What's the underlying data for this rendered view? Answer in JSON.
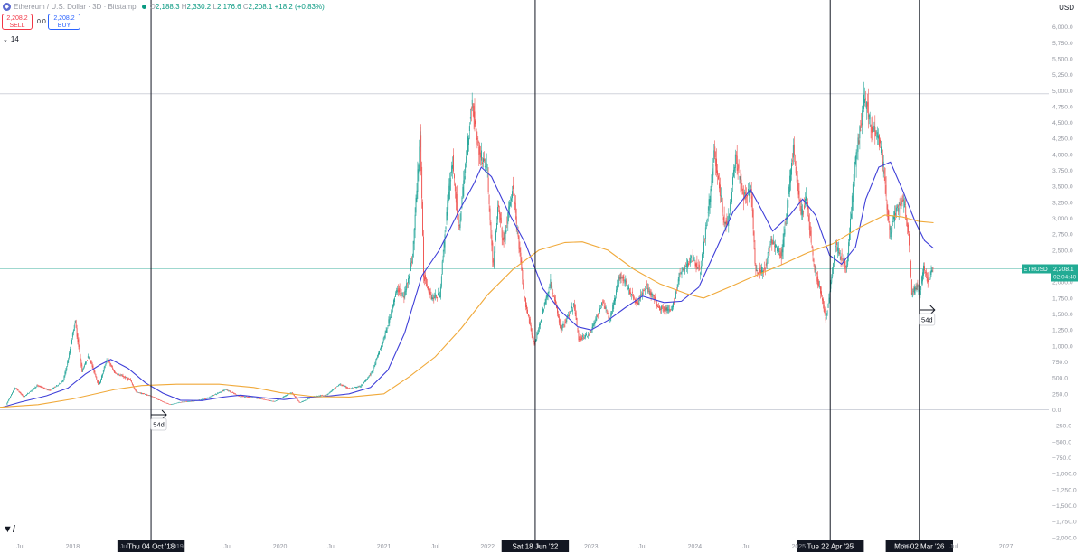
{
  "header": {
    "symbol_title": "Ethereum / U.S. Dollar · 3D · Bitstamp",
    "open_label": "O",
    "open": "2,188.3",
    "high_label": "H",
    "high": "2,330.2",
    "low_label": "L",
    "low": "2,176.6",
    "close_label": "C",
    "close": "2,208.1",
    "change": "+18.2 (+0.83%)",
    "currency": "USD"
  },
  "trade": {
    "sell_price": "2,208.2",
    "sell_label": "SELL",
    "spread": "0.0",
    "buy_price": "2,208.2",
    "buy_label": "BUY"
  },
  "indicator": {
    "label": "14"
  },
  "colors": {
    "up": "#26a69a",
    "down": "#ef5350",
    "ma_fast": "#3f3fd8",
    "ma_slow": "#f0a93a",
    "price_tag": "#22ab94"
  },
  "price_tag": {
    "symbol": "ETHUSD",
    "price": "2,208.1",
    "countdown": "02:04:40"
  },
  "vertical_markers": [
    {
      "date": "2018-10-04",
      "label": "Thu 04 Oct '18"
    },
    {
      "date": "2022-06-18",
      "label": "Sat 18 Jun '22"
    },
    {
      "date": "2025-04-22",
      "label": "Tue 22 Apr '25"
    },
    {
      "date": "2026-03-02",
      "label": "Mon 02 Mar '26"
    }
  ],
  "annotations": [
    {
      "text": "54d",
      "date": "2018-10-04"
    },
    {
      "text": "54d",
      "date": "2026-03-02"
    }
  ],
  "chart_data": {
    "type": "line",
    "title": "Ethereum / U.S. Dollar · 3D · Bitstamp",
    "y_range": [
      -2000,
      6500
    ],
    "x_range": [
      "2017-04-20",
      "2027-06-01"
    ],
    "grid": false,
    "y_ticks": [
      "6,000.0",
      "5,750.0",
      "5,500.0",
      "5,250.0",
      "5,000.0",
      "4,750.0",
      "4,500.0",
      "4,250.0",
      "4,000.0",
      "3,750.0",
      "3,500.0",
      "3,250.0",
      "3,000.0",
      "2,750.0",
      "2,500.0",
      "2,250.0",
      "2,000.0",
      "1,750.0",
      "1,500.0",
      "1,250.0",
      "1,000.0",
      "750.0",
      "500.0",
      "250.0",
      "0.0",
      "−250.0",
      "−500.0",
      "−750.0",
      "−1,000.0",
      "−1,250.0",
      "−1,500.0",
      "−1,750.0",
      "−2,000.0"
    ],
    "x_ticks": [
      {
        "label": "Jul",
        "date": "2017-07-01"
      },
      {
        "label": "2018",
        "date": "2018-01-01"
      },
      {
        "label": "Jul",
        "date": "2018-07-01"
      },
      {
        "label": "2019",
        "date": "2019-01-01"
      },
      {
        "label": "Jul",
        "date": "2019-07-01"
      },
      {
        "label": "2020",
        "date": "2020-01-01"
      },
      {
        "label": "Jul",
        "date": "2020-07-01"
      },
      {
        "label": "2021",
        "date": "2021-01-01"
      },
      {
        "label": "Jul",
        "date": "2021-07-01"
      },
      {
        "label": "2022",
        "date": "2022-01-01"
      },
      {
        "label": "Jul",
        "date": "2022-07-01"
      },
      {
        "label": "2023",
        "date": "2023-01-01"
      },
      {
        "label": "Jul",
        "date": "2023-07-01"
      },
      {
        "label": "2024",
        "date": "2024-01-01"
      },
      {
        "label": "Jul",
        "date": "2024-07-01"
      },
      {
        "label": "2025",
        "date": "2025-01-01"
      },
      {
        "label": "Jul",
        "date": "2025-07-01"
      },
      {
        "label": "2026",
        "date": "2026-01-01"
      },
      {
        "label": "Jul",
        "date": "2026-07-01"
      },
      {
        "label": "2027",
        "date": "2027-01-01"
      }
    ],
    "horizontal_lines": [
      4950,
      2208.1,
      0
    ],
    "price_series": {
      "name": "ETHUSD",
      "points": [
        [
          "2017-05-15",
          85
        ],
        [
          "2017-06-15",
          350
        ],
        [
          "2017-07-15",
          200
        ],
        [
          "2017-09-01",
          380
        ],
        [
          "2017-10-15",
          300
        ],
        [
          "2017-12-01",
          450
        ],
        [
          "2017-12-20",
          800
        ],
        [
          "2018-01-12",
          1400
        ],
        [
          "2018-02-06",
          600
        ],
        [
          "2018-03-01",
          850
        ],
        [
          "2018-04-06",
          380
        ],
        [
          "2018-05-05",
          800
        ],
        [
          "2018-06-01",
          580
        ],
        [
          "2018-07-25",
          470
        ],
        [
          "2018-08-15",
          280
        ],
        [
          "2018-10-04",
          220
        ],
        [
          "2018-11-25",
          110
        ],
        [
          "2018-12-15",
          85
        ],
        [
          "2019-01-15",
          120
        ],
        [
          "2019-03-01",
          135
        ],
        [
          "2019-04-15",
          170
        ],
        [
          "2019-05-25",
          250
        ],
        [
          "2019-06-26",
          320
        ],
        [
          "2019-08-15",
          210
        ],
        [
          "2019-09-15",
          200
        ],
        [
          "2019-10-15",
          180
        ],
        [
          "2019-12-15",
          130
        ],
        [
          "2020-02-14",
          270
        ],
        [
          "2020-03-13",
          110
        ],
        [
          "2020-04-30",
          210
        ],
        [
          "2020-06-15",
          230
        ],
        [
          "2020-08-01",
          400
        ],
        [
          "2020-09-05",
          330
        ],
        [
          "2020-10-15",
          370
        ],
        [
          "2020-11-24",
          600
        ],
        [
          "2021-01-10",
          1200
        ],
        [
          "2021-02-20",
          1900
        ],
        [
          "2021-03-15",
          1750
        ],
        [
          "2021-04-15",
          2400
        ],
        [
          "2021-05-12",
          4350
        ],
        [
          "2021-05-24",
          2100
        ],
        [
          "2021-06-22",
          1750
        ],
        [
          "2021-07-20",
          1800
        ],
        [
          "2021-08-15",
          3200
        ],
        [
          "2021-09-03",
          3900
        ],
        [
          "2021-09-25",
          2800
        ],
        [
          "2021-11-10",
          4850
        ],
        [
          "2021-12-04",
          4050
        ],
        [
          "2022-01-02",
          3800
        ],
        [
          "2022-01-24",
          2200
        ],
        [
          "2022-02-10",
          3200
        ],
        [
          "2022-03-01",
          2600
        ],
        [
          "2022-04-03",
          3500
        ],
        [
          "2022-05-12",
          1800
        ],
        [
          "2022-06-18",
          1000
        ],
        [
          "2022-07-15",
          1500
        ],
        [
          "2022-08-14",
          2000
        ],
        [
          "2022-09-20",
          1250
        ],
        [
          "2022-11-05",
          1650
        ],
        [
          "2022-11-21",
          1100
        ],
        [
          "2022-12-31",
          1200
        ],
        [
          "2023-02-15",
          1700
        ],
        [
          "2023-03-10",
          1400
        ],
        [
          "2023-04-16",
          2130
        ],
        [
          "2023-06-15",
          1650
        ],
        [
          "2023-07-15",
          1950
        ],
        [
          "2023-09-01",
          1600
        ],
        [
          "2023-10-15",
          1550
        ],
        [
          "2023-11-10",
          2100
        ],
        [
          "2023-12-28",
          2400
        ],
        [
          "2024-01-23",
          2150
        ],
        [
          "2024-02-28",
          3400
        ],
        [
          "2024-03-12",
          4050
        ],
        [
          "2024-04-17",
          2900
        ],
        [
          "2024-05-01",
          2950
        ],
        [
          "2024-05-27",
          3950
        ],
        [
          "2024-06-24",
          3300
        ],
        [
          "2024-07-20",
          3500
        ],
        [
          "2024-08-05",
          2150
        ],
        [
          "2024-09-06",
          2200
        ],
        [
          "2024-09-29",
          2650
        ],
        [
          "2024-11-05",
          2400
        ],
        [
          "2024-12-16",
          4100
        ],
        [
          "2025-01-13",
          3050
        ],
        [
          "2025-01-31",
          3300
        ],
        [
          "2025-02-28",
          2200
        ],
        [
          "2025-03-20",
          1900
        ],
        [
          "2025-04-09",
          1400
        ],
        [
          "2025-04-22",
          1800
        ],
        [
          "2025-05-13",
          2600
        ],
        [
          "2025-06-22",
          2200
        ],
        [
          "2025-07-20",
          3800
        ],
        [
          "2025-08-24",
          4900
        ],
        [
          "2025-09-20",
          4400
        ],
        [
          "2025-10-10",
          4350
        ],
        [
          "2025-10-30",
          3800
        ],
        [
          "2025-11-20",
          2750
        ],
        [
          "2025-12-15",
          3150
        ],
        [
          "2026-01-10",
          3250
        ],
        [
          "2026-01-25",
          2750
        ],
        [
          "2026-02-06",
          1800
        ],
        [
          "2026-02-25",
          1950
        ],
        [
          "2026-03-05",
          1750
        ],
        [
          "2026-03-20",
          2250
        ],
        [
          "2026-04-05",
          2000
        ],
        [
          "2026-04-21",
          2208.1
        ]
      ]
    },
    "series": [
      {
        "name": "",
        "color": "#3f3fd8",
        "points": [
          [
            "2017-04-20",
            30
          ],
          [
            "2017-07-01",
            120
          ],
          [
            "2017-10-01",
            220
          ],
          [
            "2017-12-15",
            340
          ],
          [
            "2018-02-15",
            560
          ],
          [
            "2018-04-06",
            700
          ],
          [
            "2018-05-15",
            790
          ],
          [
            "2018-07-15",
            650
          ],
          [
            "2018-09-15",
            420
          ],
          [
            "2018-11-15",
            260
          ],
          [
            "2019-01-15",
            150
          ],
          [
            "2019-04-01",
            145
          ],
          [
            "2019-06-15",
            200
          ],
          [
            "2019-08-15",
            230
          ],
          [
            "2019-11-01",
            190
          ],
          [
            "2020-01-15",
            160
          ],
          [
            "2020-03-15",
            190
          ],
          [
            "2020-06-01",
            205
          ],
          [
            "2020-09-01",
            250
          ],
          [
            "2020-11-15",
            350
          ],
          [
            "2021-01-15",
            620
          ],
          [
            "2021-03-15",
            1200
          ],
          [
            "2021-05-15",
            2100
          ],
          [
            "2021-07-15",
            2500
          ],
          [
            "2021-09-15",
            3050
          ],
          [
            "2021-11-15",
            3550
          ],
          [
            "2021-12-10",
            3800
          ],
          [
            "2022-01-15",
            3650
          ],
          [
            "2022-03-15",
            3100
          ],
          [
            "2022-05-15",
            2600
          ],
          [
            "2022-07-15",
            1900
          ],
          [
            "2022-09-15",
            1550
          ],
          [
            "2022-11-15",
            1300
          ],
          [
            "2023-01-01",
            1250
          ],
          [
            "2023-03-01",
            1400
          ],
          [
            "2023-05-01",
            1600
          ],
          [
            "2023-07-01",
            1780
          ],
          [
            "2023-09-15",
            1680
          ],
          [
            "2023-11-15",
            1700
          ],
          [
            "2024-01-15",
            1920
          ],
          [
            "2024-03-15",
            2500
          ],
          [
            "2024-05-15",
            3100
          ],
          [
            "2024-07-15",
            3450
          ],
          [
            "2024-08-15",
            3200
          ],
          [
            "2024-10-01",
            2800
          ],
          [
            "2024-12-01",
            3050
          ],
          [
            "2025-01-15",
            3300
          ],
          [
            "2025-03-01",
            3050
          ],
          [
            "2025-04-20",
            2420
          ],
          [
            "2025-06-01",
            2280
          ],
          [
            "2025-07-20",
            2550
          ],
          [
            "2025-08-25",
            3300
          ],
          [
            "2025-10-10",
            3800
          ],
          [
            "2025-11-20",
            3880
          ],
          [
            "2026-01-01",
            3450
          ],
          [
            "2026-02-15",
            2950
          ],
          [
            "2026-03-20",
            2650
          ],
          [
            "2026-04-21",
            2530
          ]
        ]
      },
      {
        "name": "",
        "color": "#f0a93a",
        "points": [
          [
            "2017-04-20",
            40
          ],
          [
            "2017-09-01",
            80
          ],
          [
            "2018-01-01",
            170
          ],
          [
            "2018-06-01",
            320
          ],
          [
            "2018-09-01",
            380
          ],
          [
            "2019-01-01",
            400
          ],
          [
            "2019-06-01",
            400
          ],
          [
            "2019-10-01",
            350
          ],
          [
            "2020-01-01",
            270
          ],
          [
            "2020-05-01",
            205
          ],
          [
            "2020-09-01",
            200
          ],
          [
            "2021-01-01",
            250
          ],
          [
            "2021-04-01",
            520
          ],
          [
            "2021-07-01",
            830
          ],
          [
            "2021-10-01",
            1280
          ],
          [
            "2022-01-01",
            1800
          ],
          [
            "2022-04-01",
            2200
          ],
          [
            "2022-07-01",
            2500
          ],
          [
            "2022-10-01",
            2620
          ],
          [
            "2022-12-01",
            2630
          ],
          [
            "2023-03-01",
            2500
          ],
          [
            "2023-06-01",
            2200
          ],
          [
            "2023-09-01",
            1970
          ],
          [
            "2023-12-01",
            1820
          ],
          [
            "2024-02-01",
            1750
          ],
          [
            "2024-05-01",
            1920
          ],
          [
            "2024-08-01",
            2100
          ],
          [
            "2024-11-01",
            2270
          ],
          [
            "2025-02-01",
            2460
          ],
          [
            "2025-05-01",
            2600
          ],
          [
            "2025-08-01",
            2850
          ],
          [
            "2025-11-01",
            3050
          ],
          [
            "2026-01-01",
            3020
          ],
          [
            "2026-03-01",
            2950
          ],
          [
            "2026-04-21",
            2930
          ]
        ]
      }
    ]
  }
}
